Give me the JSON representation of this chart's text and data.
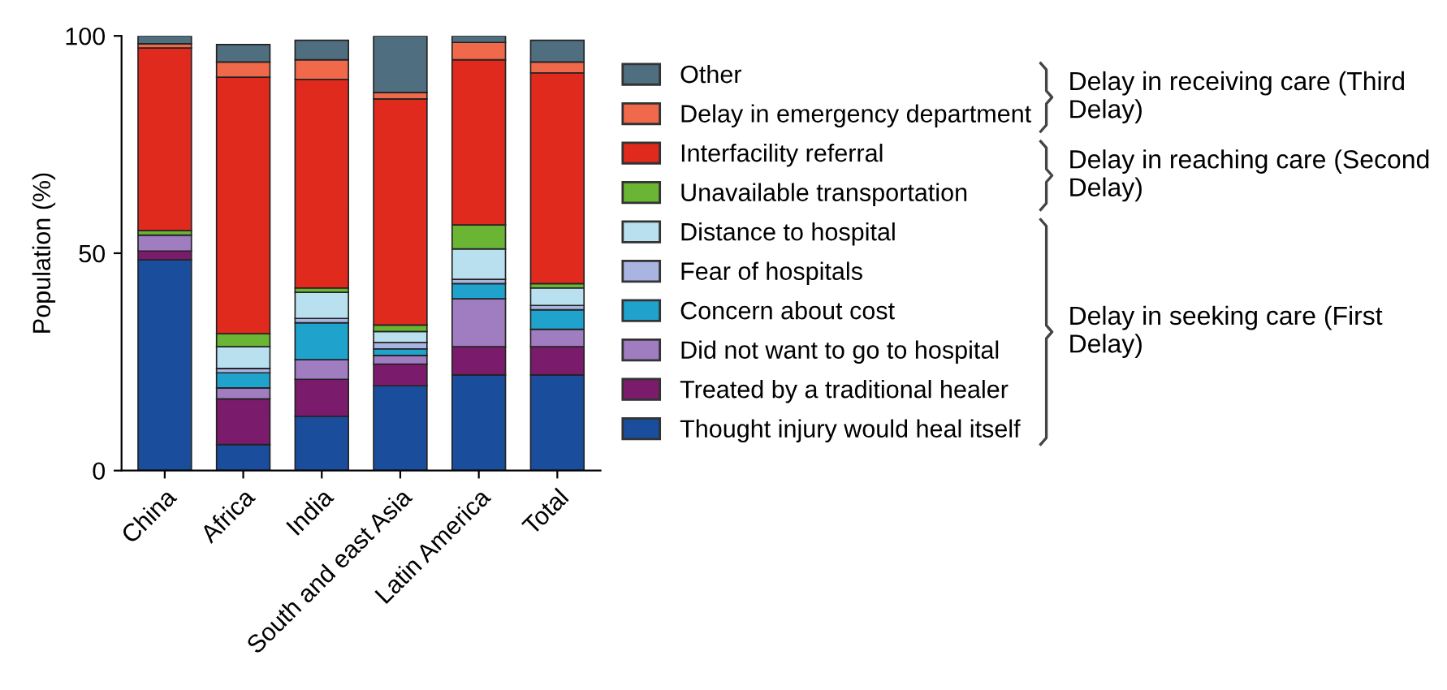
{
  "chart_data": {
    "type": "bar",
    "stacked": true,
    "ylabel": "Population (%)",
    "categories": [
      "China",
      "Africa",
      "India",
      "South and east Asia",
      "Latin America",
      "Total"
    ],
    "series": [
      {
        "name": "Thought injury would heal itself",
        "color": "#1a4d9c",
        "values": [
          48.5,
          6,
          12.5,
          19.5,
          22,
          22
        ]
      },
      {
        "name": "Treated by a traditional healer",
        "color": "#7b1b6b",
        "values": [
          2,
          10.5,
          8.5,
          5,
          6.5,
          6.5
        ]
      },
      {
        "name": "Did not want to go to hospital",
        "color": "#a07cc0",
        "values": [
          3.7,
          2.5,
          4.5,
          2,
          11,
          4
        ]
      },
      {
        "name": "Concern about cost",
        "color": "#1fa3cc",
        "values": [
          0,
          3.5,
          8.5,
          1.5,
          3.5,
          4.5
        ]
      },
      {
        "name": "Fear of hospitals",
        "color": "#a9b4e0",
        "values": [
          0,
          1,
          1,
          1.5,
          1,
          1
        ]
      },
      {
        "name": "Distance to hospital",
        "color": "#b8e0ee",
        "values": [
          0,
          5,
          6,
          2.5,
          7,
          4
        ]
      },
      {
        "name": "Unavailable transportation",
        "color": "#6ab533",
        "values": [
          1,
          3,
          1,
          1.5,
          5.5,
          1
        ]
      },
      {
        "name": "Interfacility referral",
        "color": "#e02a1e",
        "values": [
          42,
          59,
          48,
          52,
          38,
          48.5
        ]
      },
      {
        "name": "Delay in emergency department",
        "color": "#f0694a",
        "values": [
          1,
          3.5,
          4.5,
          1.5,
          4,
          2.5
        ]
      },
      {
        "name": "Other",
        "color": "#4f6f80",
        "values": [
          1.8,
          4,
          4.5,
          13,
          1.5,
          5
        ]
      }
    ],
    "ylim": [
      0,
      100
    ],
    "yticks": [
      0,
      50,
      100
    ],
    "grid": false,
    "legend": "right",
    "annotations": [
      "Delay in receiving care (Third Delay)",
      "Delay in reaching care (Second Delay)",
      "Delay in seeking care (First Delay)"
    ]
  }
}
